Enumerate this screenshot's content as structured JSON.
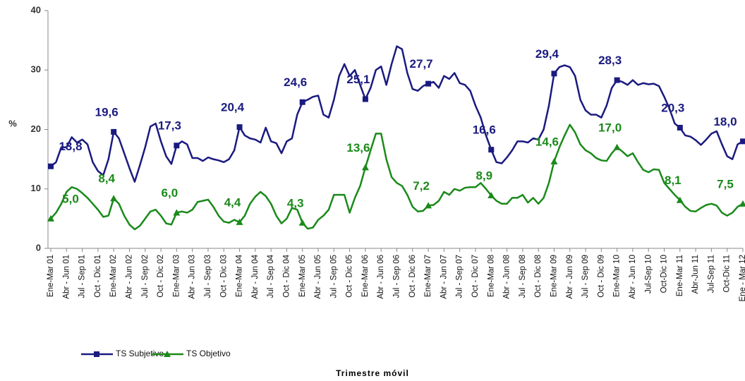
{
  "chart_data": {
    "type": "line",
    "y_label": "%",
    "x_label": "Trimestre móvil",
    "categories": [
      "Ene-Mar 01",
      null,
      null,
      "Abr - Jun 01",
      null,
      null,
      "Jul - Sep 01",
      null,
      null,
      "Oct - Dic 01",
      null,
      null,
      "Ene-Mar 02",
      null,
      null,
      "Abr - Jun 02",
      null,
      null,
      "Jul - Sep 02",
      null,
      null,
      "Oct - Dic 02",
      null,
      null,
      "Ene-Mar 03",
      null,
      null,
      "Abr - Jun 03",
      null,
      null,
      "Jul - Sep 03",
      null,
      null,
      "Oct - Dic 03",
      null,
      null,
      "Ene-Mar 04",
      null,
      null,
      "Abr - Jun 04",
      null,
      null,
      "Jul - Sep 04",
      null,
      null,
      "Oct - Dic 04",
      null,
      null,
      "Ene-Mar 05",
      null,
      null,
      "Abr - Jun 05",
      null,
      null,
      "Jul - Sep 05",
      null,
      null,
      "Oct - Dic 05",
      null,
      null,
      "Ene-Mar 06",
      null,
      null,
      "Abr - Jun 06",
      null,
      null,
      "Jul - Sep 06",
      null,
      null,
      "Oct - Dic 06",
      null,
      null,
      "Ene-Mar 07",
      null,
      null,
      "Abr - Jun 07",
      null,
      null,
      "Jul - Sep 07",
      null,
      null,
      "Oct - Dic 07",
      null,
      null,
      "Ene-Mar 08",
      null,
      null,
      "Abr - Jun 08",
      null,
      null,
      "Jul - Sep 08",
      null,
      null,
      "Oct - Dic 08",
      null,
      null,
      "Ene-Mar 09",
      null,
      null,
      "Abr - Jun 09",
      null,
      null,
      "Jul - Sep 09",
      null,
      null,
      "Oct - Dic 09",
      null,
      null,
      "Ene-Mar 10",
      null,
      null,
      "Abr - Jun 10",
      null,
      null,
      "Jul-Sep 10",
      null,
      null,
      "Oct-Dic 10",
      null,
      null,
      "Ene-Mar 11",
      null,
      null,
      "Abr-Jun 11",
      null,
      null,
      "Jul-Sep 11",
      null,
      null,
      "Oct-Dic 11",
      null,
      null,
      "Ene - Mar 12"
    ],
    "series": [
      {
        "name": "TS Subjetivo",
        "color": "#1a1a80",
        "marker": "square",
        "values": [
          13.8,
          14.5,
          17,
          17,
          18.7,
          17.8,
          18.3,
          17.5,
          14.5,
          13,
          12.3,
          15,
          19.6,
          18.5,
          16,
          13.5,
          11.2,
          14,
          17,
          20.5,
          21,
          18,
          15.5,
          14.2,
          17.3,
          18,
          17.5,
          15.2,
          15.2,
          14.7,
          15.3,
          15,
          14.8,
          14.5,
          15,
          16.5,
          20.4,
          19,
          18.5,
          18.3,
          17.8,
          20.3,
          18,
          17.7,
          16,
          18,
          18.5,
          22.5,
          24.6,
          25,
          25.5,
          25.7,
          22.5,
          22,
          25,
          29,
          31,
          29,
          30,
          27.5,
          25.1,
          27,
          30,
          30.6,
          27.5,
          31,
          34,
          33.5,
          29.5,
          26.8,
          26.5,
          27.3,
          27.7,
          28,
          27,
          29,
          28.5,
          29.5,
          27.8,
          27.5,
          26.5,
          24,
          22,
          19,
          16.6,
          14.5,
          14.3,
          15.3,
          16.5,
          18,
          18,
          17.8,
          18.5,
          18.3,
          20,
          24,
          29.4,
          30.5,
          30.8,
          30.5,
          29,
          25,
          23.2,
          22.5,
          22.5,
          22,
          24,
          27,
          28.3,
          28,
          27.5,
          28.3,
          27.5,
          27.8,
          27.6,
          27.7,
          27.3,
          25.5,
          23.5,
          21,
          20.3,
          19,
          18.8,
          18.2,
          17.4,
          18.3,
          19.3,
          19.7,
          17.5,
          15.5,
          15,
          17.5,
          18.0
        ],
        "value_labels": [
          "13,8",
          null,
          null,
          null,
          null,
          null,
          null,
          null,
          null,
          null,
          null,
          null,
          "19,6",
          null,
          null,
          null,
          null,
          null,
          null,
          null,
          null,
          null,
          null,
          null,
          "17,3",
          null,
          null,
          null,
          null,
          null,
          null,
          null,
          null,
          null,
          null,
          null,
          "20,4",
          null,
          null,
          null,
          null,
          null,
          null,
          null,
          null,
          null,
          null,
          null,
          "24,6",
          null,
          null,
          null,
          null,
          null,
          null,
          null,
          null,
          null,
          null,
          null,
          "25,1",
          null,
          null,
          null,
          null,
          null,
          null,
          null,
          null,
          null,
          null,
          null,
          "27,7",
          null,
          null,
          null,
          null,
          null,
          null,
          null,
          null,
          null,
          null,
          null,
          "16,6",
          null,
          null,
          null,
          null,
          null,
          null,
          null,
          null,
          null,
          null,
          null,
          "29,4",
          null,
          null,
          null,
          null,
          null,
          null,
          null,
          null,
          null,
          null,
          null,
          "28,3",
          null,
          null,
          null,
          null,
          null,
          null,
          null,
          null,
          null,
          null,
          null,
          "20,3",
          null,
          null,
          null,
          null,
          null,
          null,
          null,
          null,
          null,
          null,
          null,
          "18,0"
        ]
      },
      {
        "name": "TS Objetivo",
        "color": "#1a8a1a",
        "marker": "triangle",
        "values": [
          5.0,
          6,
          7.5,
          9.5,
          10.3,
          10,
          9.3,
          8.5,
          7.5,
          6.5,
          5.3,
          5.5,
          8.4,
          7.5,
          5.5,
          4,
          3.2,
          3.8,
          5,
          6.2,
          6.5,
          5.5,
          4.2,
          4,
          6.0,
          6.2,
          6,
          6.5,
          7.8,
          8,
          8.2,
          7,
          5.5,
          4.5,
          4.3,
          4.8,
          4.4,
          5.5,
          7.5,
          8.7,
          9.5,
          8.8,
          7.5,
          5.5,
          4.2,
          5,
          6.8,
          6.5,
          4.3,
          3.3,
          3.5,
          4.8,
          5.5,
          6.5,
          9,
          9,
          9,
          6,
          8.5,
          10.5,
          13.6,
          16.5,
          19.3,
          19.3,
          15,
          12,
          11,
          10.5,
          9,
          7,
          6.2,
          6.3,
          7.2,
          7.3,
          8,
          9.5,
          9,
          10,
          9.7,
          10.2,
          10.3,
          10.3,
          11,
          10,
          8.9,
          8,
          7.5,
          7.5,
          8.5,
          8.5,
          9,
          7.7,
          8.5,
          7.5,
          8.5,
          11,
          14.6,
          17,
          19,
          20.8,
          19.5,
          17.5,
          16.5,
          16,
          15.2,
          14.8,
          14.7,
          16,
          17.0,
          16.3,
          15.5,
          16,
          14.5,
          13.2,
          12.8,
          13.3,
          13.2,
          11,
          10,
          9,
          8.1,
          7,
          6.3,
          6.2,
          6.8,
          7.3,
          7.5,
          7.2,
          6,
          5.5,
          6,
          7,
          7.5
        ],
        "value_labels": [
          "5,0",
          null,
          null,
          null,
          null,
          null,
          null,
          null,
          null,
          null,
          null,
          null,
          "8,4",
          null,
          null,
          null,
          null,
          null,
          null,
          null,
          null,
          null,
          null,
          null,
          "6,0",
          null,
          null,
          null,
          null,
          null,
          null,
          null,
          null,
          null,
          null,
          null,
          "4,4",
          null,
          null,
          null,
          null,
          null,
          null,
          null,
          null,
          null,
          null,
          null,
          "4,3",
          null,
          null,
          null,
          null,
          null,
          null,
          null,
          null,
          null,
          null,
          null,
          "13,6",
          null,
          null,
          null,
          null,
          null,
          null,
          null,
          null,
          null,
          null,
          null,
          "7,2",
          null,
          null,
          null,
          null,
          null,
          null,
          null,
          null,
          null,
          null,
          null,
          "8,9",
          null,
          null,
          null,
          null,
          null,
          null,
          null,
          null,
          null,
          null,
          null,
          "14,6",
          null,
          null,
          null,
          null,
          null,
          null,
          null,
          null,
          null,
          null,
          null,
          "17,0",
          null,
          null,
          null,
          null,
          null,
          null,
          null,
          null,
          null,
          null,
          null,
          "8,1",
          null,
          null,
          null,
          null,
          null,
          null,
          null,
          null,
          null,
          null,
          null,
          "7,5"
        ]
      }
    ],
    "ylim": [
      0,
      40
    ],
    "yticks": [
      0,
      10,
      20,
      30,
      40
    ],
    "grid": false,
    "legend": "bottom-left"
  }
}
